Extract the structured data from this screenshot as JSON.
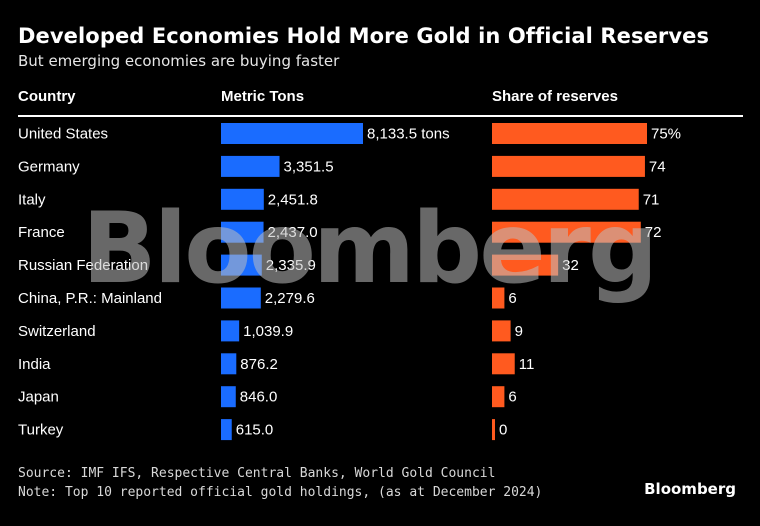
{
  "header": {
    "title": "Developed Economies Hold More Gold in Official Reserves",
    "subtitle": "But emerging economies are buying faster",
    "col_country": "Country",
    "col_tons": "Metric Tons",
    "col_share": "Share of reserves"
  },
  "chart_data": {
    "type": "bar",
    "title": "Developed Economies Hold More Gold in Official Reserves",
    "subtitle": "But emerging economies are buying faster",
    "categories": [
      "United States",
      "Germany",
      "Italy",
      "France",
      "Russian Federation",
      "China, P.R.: Mainland",
      "Switzerland",
      "India",
      "Japan",
      "Turkey"
    ],
    "series": [
      {
        "name": "Metric Tons",
        "values": [
          8133.5,
          3351.5,
          2451.8,
          2437.0,
          2335.9,
          2279.6,
          1039.9,
          876.2,
          846.0,
          615.0
        ],
        "labels": [
          "8,133.5 tons",
          "3,351.5",
          "2,451.8",
          "2,437.0",
          "2,335.9",
          "2,279.6",
          "1,039.9",
          "876.2",
          "846.0",
          "615.0"
        ],
        "color": "#1a6cff"
      },
      {
        "name": "Share of reserves",
        "values": [
          75,
          74,
          71,
          72,
          32,
          6,
          9,
          11,
          6,
          0
        ],
        "labels": [
          "75%",
          "74",
          "71",
          "72",
          "32",
          "6",
          "9",
          "11",
          "6",
          "0"
        ],
        "color": "#ff5a1f"
      }
    ],
    "legend": "none",
    "grid": false
  },
  "footer": {
    "source": "Source: IMF IFS, Respective Central Banks, World Gold Council",
    "note": "Note: Top 10 reported official gold holdings, (as at December 2024)",
    "brand": "Bloomberg"
  },
  "watermark": "Bloomberg"
}
